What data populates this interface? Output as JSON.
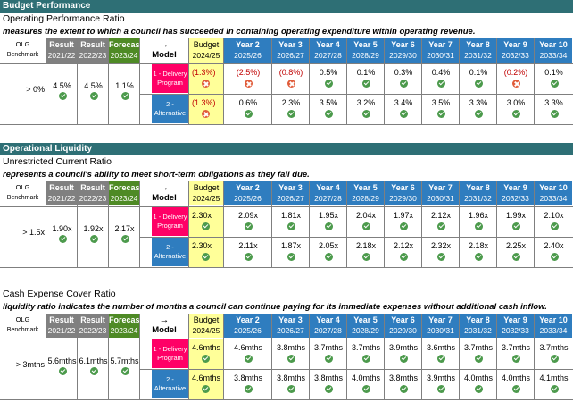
{
  "headers": {
    "olg": "OLG",
    "benchmark": "Benchmark",
    "result": "Result",
    "forecast": "Forecast",
    "arrow": "→",
    "model": "Model",
    "budget": "Budget",
    "periods": [
      "2021/22",
      "2022/23",
      "2023/24",
      "2024/25",
      "2025/26",
      "2026/27",
      "2027/28",
      "2028/29",
      "2029/30",
      "2030/31",
      "2031/32",
      "2032/33",
      "2033/34"
    ],
    "years": [
      "Year 2",
      "Year 3",
      "Year 4",
      "Year 5",
      "Year 6",
      "Year 7",
      "Year 8",
      "Year 9",
      "Year 10"
    ]
  },
  "models": {
    "delivery": "1 - Delivery Program",
    "alternative": "2 - Alternative"
  },
  "sections": [
    {
      "section_title": "Budget Performance",
      "metric_title": "Operating Performance Ratio",
      "description": "measures the extent to which a council has succeeded in containing operating expenditure within operating revenue.",
      "benchmark": "> 0%",
      "history": [
        "4.5%",
        "4.5%",
        "1.1%"
      ],
      "history_status": [
        "ok",
        "ok",
        "ok"
      ],
      "delivery": [
        "(1.3%)",
        "(2.5%)",
        "(0.8%)",
        "0.5%",
        "0.1%",
        "0.3%",
        "0.4%",
        "0.1%",
        "(0.2%)",
        "0.1%"
      ],
      "delivery_status": [
        "bad",
        "bad",
        "bad",
        "ok",
        "ok",
        "ok",
        "ok",
        "ok",
        "bad",
        "ok"
      ],
      "alternative": [
        "(1.3%)",
        "0.6%",
        "2.3%",
        "3.5%",
        "3.2%",
        "3.4%",
        "3.5%",
        "3.3%",
        "3.0%",
        "3.3%"
      ],
      "alternative_status": [
        "bad",
        "ok",
        "ok",
        "ok",
        "ok",
        "ok",
        "ok",
        "ok",
        "ok",
        "ok"
      ]
    },
    {
      "section_title": "Operational Liquidity",
      "metric_title": "Unrestricted Current Ratio",
      "description": "represents a council's ability to meet short-term obligations as they fall due.",
      "benchmark": "> 1.5x",
      "history": [
        "1.90x",
        "1.92x",
        "2.17x"
      ],
      "history_status": [
        "ok",
        "ok",
        "ok"
      ],
      "delivery": [
        "2.30x",
        "2.09x",
        "1.81x",
        "1.95x",
        "2.04x",
        "1.97x",
        "2.12x",
        "1.96x",
        "1.99x",
        "2.10x"
      ],
      "delivery_status": [
        "ok",
        "ok",
        "ok",
        "ok",
        "ok",
        "ok",
        "ok",
        "ok",
        "ok",
        "ok"
      ],
      "alternative": [
        "2.30x",
        "2.11x",
        "1.87x",
        "2.05x",
        "2.18x",
        "2.12x",
        "2.32x",
        "2.18x",
        "2.25x",
        "2.40x"
      ],
      "alternative_status": [
        "ok",
        "ok",
        "ok",
        "ok",
        "ok",
        "ok",
        "ok",
        "ok",
        "ok",
        "ok"
      ]
    },
    {
      "section_title": "",
      "metric_title": "Cash Expense Cover Ratio",
      "description": "liquidity ratio indicates the number of months a council can continue paying for its immediate expenses without additional cash inflow.",
      "benchmark": "> 3mths",
      "history": [
        "5.6mths",
        "6.1mths",
        "5.7mths"
      ],
      "history_status": [
        "ok",
        "ok",
        "ok"
      ],
      "delivery": [
        "4.6mths",
        "4.6mths",
        "3.8mths",
        "3.7mths",
        "3.7mths",
        "3.9mths",
        "3.6mths",
        "3.7mths",
        "3.7mths",
        "3.7mths"
      ],
      "delivery_status": [
        "ok",
        "ok",
        "ok",
        "ok",
        "ok",
        "ok",
        "ok",
        "ok",
        "ok",
        "ok"
      ],
      "alternative": [
        "4.6mths",
        "3.8mths",
        "3.8mths",
        "3.8mths",
        "4.0mths",
        "3.8mths",
        "3.9mths",
        "4.0mths",
        "4.0mths",
        "4.1mths"
      ],
      "alternative_status": [
        "ok",
        "ok",
        "ok",
        "ok",
        "ok",
        "ok",
        "ok",
        "ok",
        "ok",
        "ok"
      ]
    }
  ]
}
